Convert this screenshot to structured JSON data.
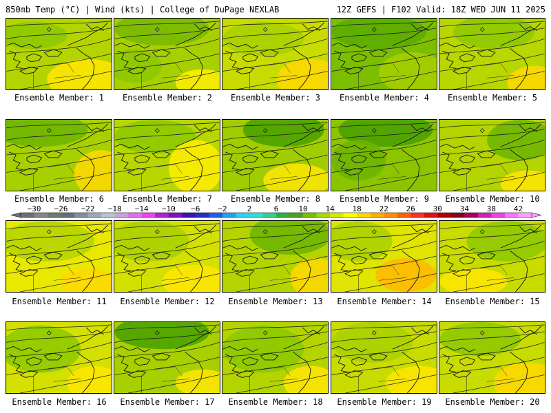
{
  "header": {
    "left": "850mb Temp (°C) | Wind (kts) | College of DuPage NEXLAB",
    "right": "12Z GEFS | F102 Valid: 18Z WED JUN 11 2025"
  },
  "caption_prefix": "Ensemble Member: ",
  "members": [
    "1",
    "2",
    "3",
    "4",
    "5",
    "6",
    "7",
    "8",
    "9",
    "10",
    "11",
    "12",
    "13",
    "14",
    "15",
    "16",
    "17",
    "18",
    "19",
    "20"
  ],
  "colorbar": {
    "labels": [
      "-30",
      "-26",
      "-22",
      "-18",
      "-14",
      "-10",
      "-6",
      "-2",
      "2",
      "6",
      "10",
      "14",
      "18",
      "22",
      "26",
      "30",
      "34",
      "38",
      "42"
    ],
    "colors": [
      "#6e6e6e",
      "#858585",
      "#6a7c6a",
      "#5f6f7f",
      "#7f8f9f",
      "#9aaab8",
      "#b8c4d0",
      "#c9a0dc",
      "#e070e8",
      "#f040f0",
      "#b020d0",
      "#8010c0",
      "#4010b0",
      "#2030c0",
      "#2060e0",
      "#20a0f0",
      "#30d0f0",
      "#30e0d0",
      "#30d090",
      "#30b040",
      "#50a020",
      "#78c000",
      "#a8d800",
      "#d8e800",
      "#ffff00",
      "#ffd800",
      "#ffb000",
      "#ff9000",
      "#ff6000",
      "#ff3020",
      "#e01010",
      "#b00000",
      "#800020",
      "#a00060",
      "#d020b0",
      "#f040e0",
      "#ff70ff",
      "#ffa0ff"
    ]
  }
}
